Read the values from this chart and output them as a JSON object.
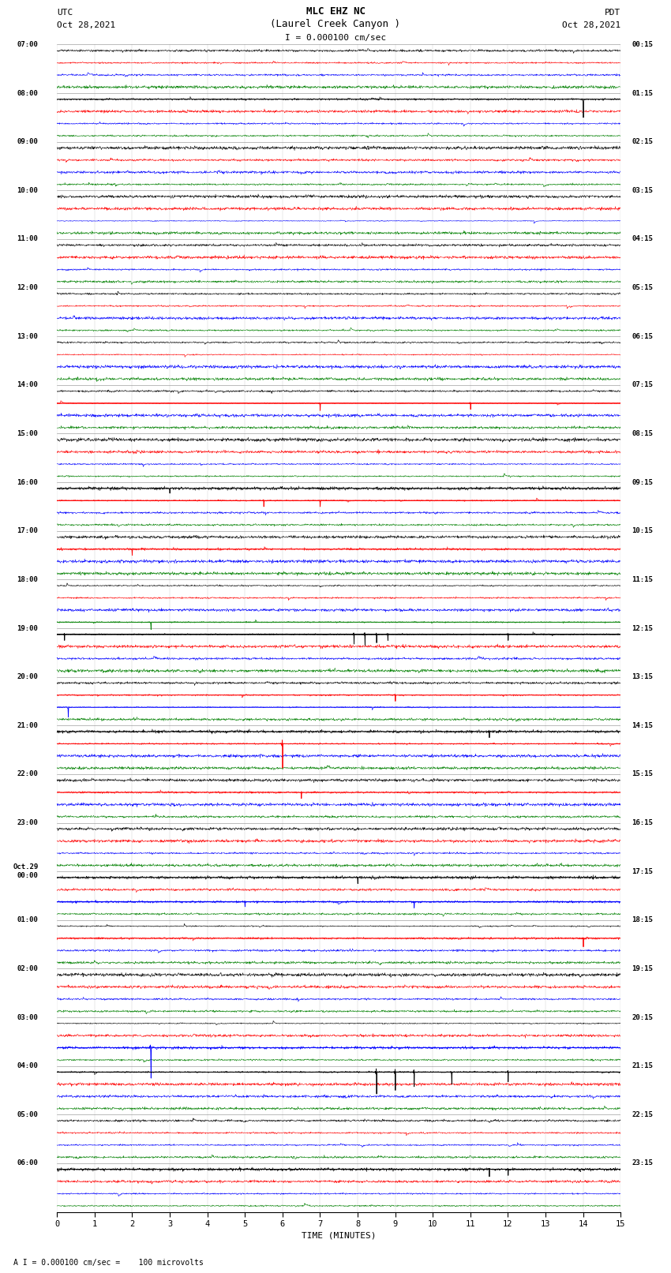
{
  "title_line1": "MLC EHZ NC",
  "title_line2": "(Laurel Creek Canyon )",
  "scale_label": "I = 0.000100 cm/sec",
  "bottom_label": "TIME (MINUTES)",
  "bottom_note": "A I = 0.000100 cm/sec =    100 microvolts",
  "fig_width": 8.5,
  "fig_height": 16.13,
  "colors": [
    "black",
    "red",
    "blue",
    "green"
  ],
  "utc_labels": [
    "07:00",
    "08:00",
    "09:00",
    "10:00",
    "11:00",
    "12:00",
    "13:00",
    "14:00",
    "15:00",
    "16:00",
    "17:00",
    "18:00",
    "19:00",
    "20:00",
    "21:00",
    "22:00",
    "23:00",
    "Oct.29\n00:00",
    "01:00",
    "02:00",
    "03:00",
    "04:00",
    "05:00",
    "06:00"
  ],
  "pdt_labels": [
    "00:15",
    "01:15",
    "02:15",
    "03:15",
    "04:15",
    "05:15",
    "06:15",
    "07:15",
    "08:15",
    "09:15",
    "10:15",
    "11:15",
    "12:15",
    "13:15",
    "14:15",
    "15:15",
    "16:15",
    "17:15",
    "18:15",
    "19:15",
    "20:15",
    "21:15",
    "22:15",
    "23:15"
  ],
  "num_rows": 24,
  "traces_per_row": 4,
  "noise_seed": 42,
  "x_ticks": [
    0,
    1,
    2,
    3,
    4,
    5,
    6,
    7,
    8,
    9,
    10,
    11,
    12,
    13,
    14,
    15
  ]
}
